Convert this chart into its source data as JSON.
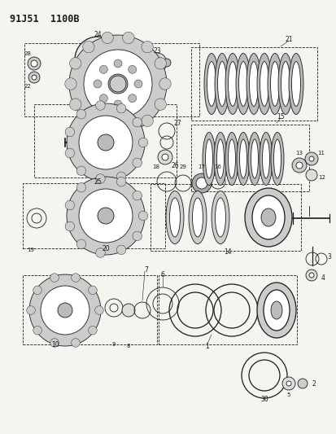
{
  "title": "91J51  1100B",
  "bg_color": "#f5f5f0",
  "line_color": "#1a1a1a",
  "fig_width": 4.14,
  "fig_height": 5.33,
  "dpi": 100
}
